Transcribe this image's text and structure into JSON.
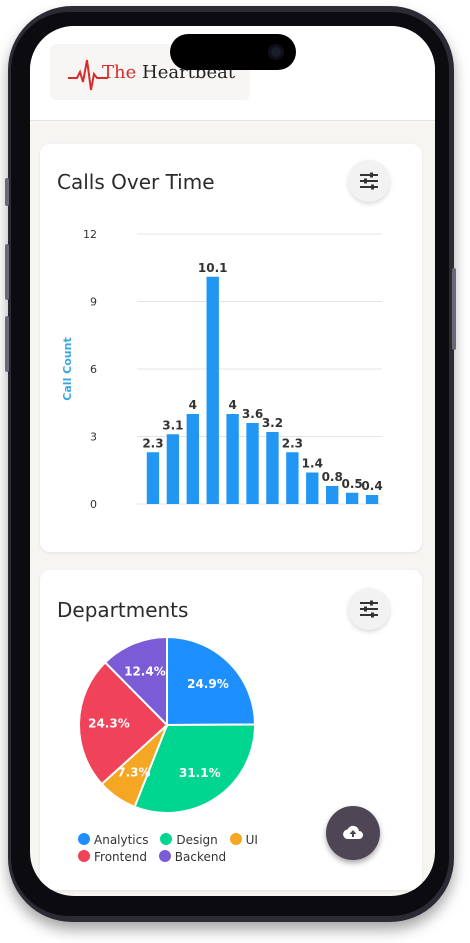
{
  "app": {
    "logo": {
      "text_the": "The",
      "text_rest": "Heartbeat"
    }
  },
  "calls_card": {
    "title": "Calls Over Time",
    "filter_icon": "sliders-icon"
  },
  "chart_data": [
    {
      "type": "bar",
      "ylabel": "Call Count",
      "xlabel": "",
      "ylim": [
        0,
        12
      ],
      "yticks": [
        "0",
        "3",
        "6",
        "9",
        "12"
      ],
      "grid": true,
      "values": [
        2.3,
        3.1,
        4,
        10.1,
        4,
        3.6,
        3.2,
        2.3,
        1.4,
        0.8,
        0.5,
        0.4
      ],
      "labels": [
        "2.3",
        "3.1",
        "4",
        "10.1",
        "4",
        "3.6",
        "3.2",
        "2.3",
        "1.4",
        "0.8",
        "0.5",
        "0.4"
      ],
      "color": "#2196f3"
    },
    {
      "type": "pie",
      "slices": [
        {
          "name": "Analytics",
          "value": 24.9,
          "label": "24.9%",
          "color": "#1e8fff"
        },
        {
          "name": "Design",
          "value": 31.1,
          "label": "31.1%",
          "color": "#00d68f"
        },
        {
          "name": "UI",
          "value": 7.3,
          "label": "7.3%",
          "color": "#f5a623"
        },
        {
          "name": "Frontend",
          "value": 24.3,
          "label": "24.3%",
          "color": "#f0435a"
        },
        {
          "name": "Backend",
          "value": 12.4,
          "label": "12.4%",
          "color": "#7b5cd6"
        }
      ]
    }
  ],
  "departments_card": {
    "title": "Departments",
    "filter_icon": "sliders-icon",
    "legend": [
      {
        "label": "Analytics",
        "color": "#1e8fff"
      },
      {
        "label": "Design",
        "color": "#00d68f"
      },
      {
        "label": "UI",
        "color": "#f5a623"
      },
      {
        "label": "Frontend",
        "color": "#f0435a"
      },
      {
        "label": "Backend",
        "color": "#7b5cd6"
      }
    ]
  },
  "fab": {
    "icon": "cloud-upload-icon"
  }
}
